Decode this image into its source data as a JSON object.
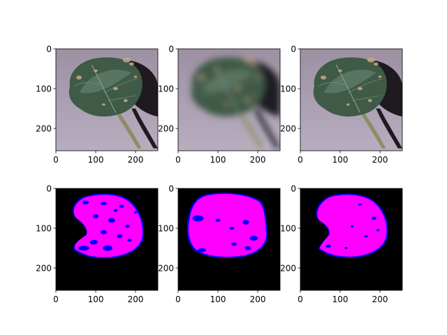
{
  "figure": {
    "background": "#ffffff",
    "grid": false,
    "rows": 2,
    "cols": 3
  },
  "colors": {
    "background_wall": "#9d92a3",
    "leaf_dark": "#3f5a47",
    "leaf_light": "#6e8a78",
    "stem": "#8a8f64",
    "shadow": "#1e1a20",
    "spot": "#c9a888",
    "mask_background": "#000000",
    "mask_leaf": "#ff00ff",
    "mask_edge": "#0000ff"
  },
  "chart_data": [
    {
      "type": "image",
      "panel": "top-left",
      "content": "leaf photo (original)",
      "xlim": [
        0,
        256
      ],
      "ylim": [
        256,
        0
      ],
      "xticks": [
        "0",
        "100",
        "200"
      ],
      "yticks": [
        "0",
        "100",
        "200"
      ]
    },
    {
      "type": "image",
      "panel": "top-center",
      "content": "leaf photo (blurred)",
      "xlim": [
        0,
        256
      ],
      "ylim": [
        256,
        0
      ],
      "xticks": [
        "0",
        "100",
        "200"
      ],
      "yticks": [
        "0",
        "100",
        "200"
      ]
    },
    {
      "type": "image",
      "panel": "top-right",
      "content": "leaf photo (sharpened)",
      "xlim": [
        0,
        256
      ],
      "ylim": [
        256,
        0
      ],
      "xticks": [
        "0",
        "100",
        "200"
      ],
      "yticks": [
        "0",
        "100",
        "200"
      ]
    },
    {
      "type": "image",
      "panel": "bottom-left",
      "content": "segmentation mask",
      "xlim": [
        0,
        256
      ],
      "ylim": [
        256,
        0
      ],
      "xticks": [
        "0",
        "100",
        "200"
      ],
      "yticks": [
        "0",
        "100",
        "200"
      ]
    },
    {
      "type": "image",
      "panel": "bottom-center",
      "content": "segmentation mask",
      "xlim": [
        0,
        256
      ],
      "ylim": [
        256,
        0
      ],
      "xticks": [
        "0",
        "100",
        "200"
      ],
      "yticks": [
        "0",
        "100",
        "200"
      ]
    },
    {
      "type": "image",
      "panel": "bottom-right",
      "content": "segmentation mask",
      "xlim": [
        0,
        256
      ],
      "ylim": [
        256,
        0
      ],
      "xticks": [
        "0",
        "100",
        "200"
      ],
      "yticks": [
        "0",
        "100",
        "200"
      ]
    }
  ]
}
